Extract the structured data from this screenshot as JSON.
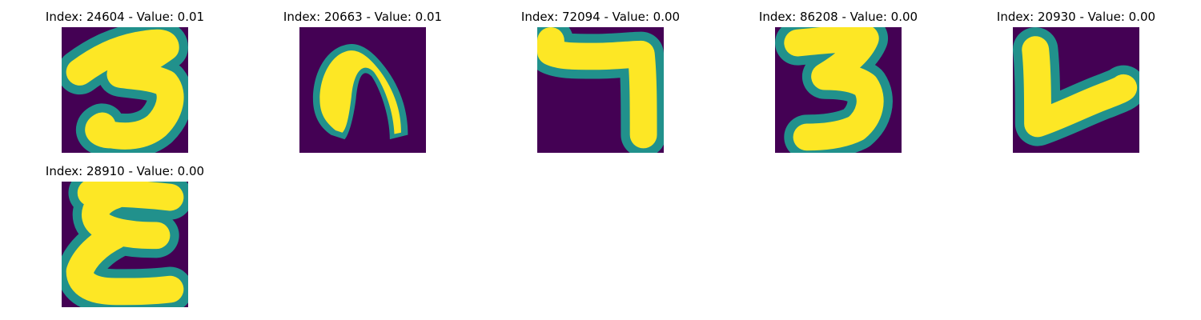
{
  "panels": [
    {
      "title": "Index: 24604 - Value: 0.01",
      "subject": "digit-three"
    },
    {
      "title": "Index: 20663 - Value: 0.01",
      "subject": "digit-arch"
    },
    {
      "title": "Index: 72094 - Value: 0.00",
      "subject": "digit-seven"
    },
    {
      "title": "Index: 86208 - Value: 0.00",
      "subject": "digit-three"
    },
    {
      "title": "Index: 20930 - Value: 0.00",
      "subject": "digit-check"
    },
    {
      "title": "Index: 28910 - Value: 0.00",
      "subject": "digit-epsilon"
    }
  ],
  "colors": {
    "background": "#440154",
    "edge": "#21918c",
    "core": "#fde725"
  }
}
